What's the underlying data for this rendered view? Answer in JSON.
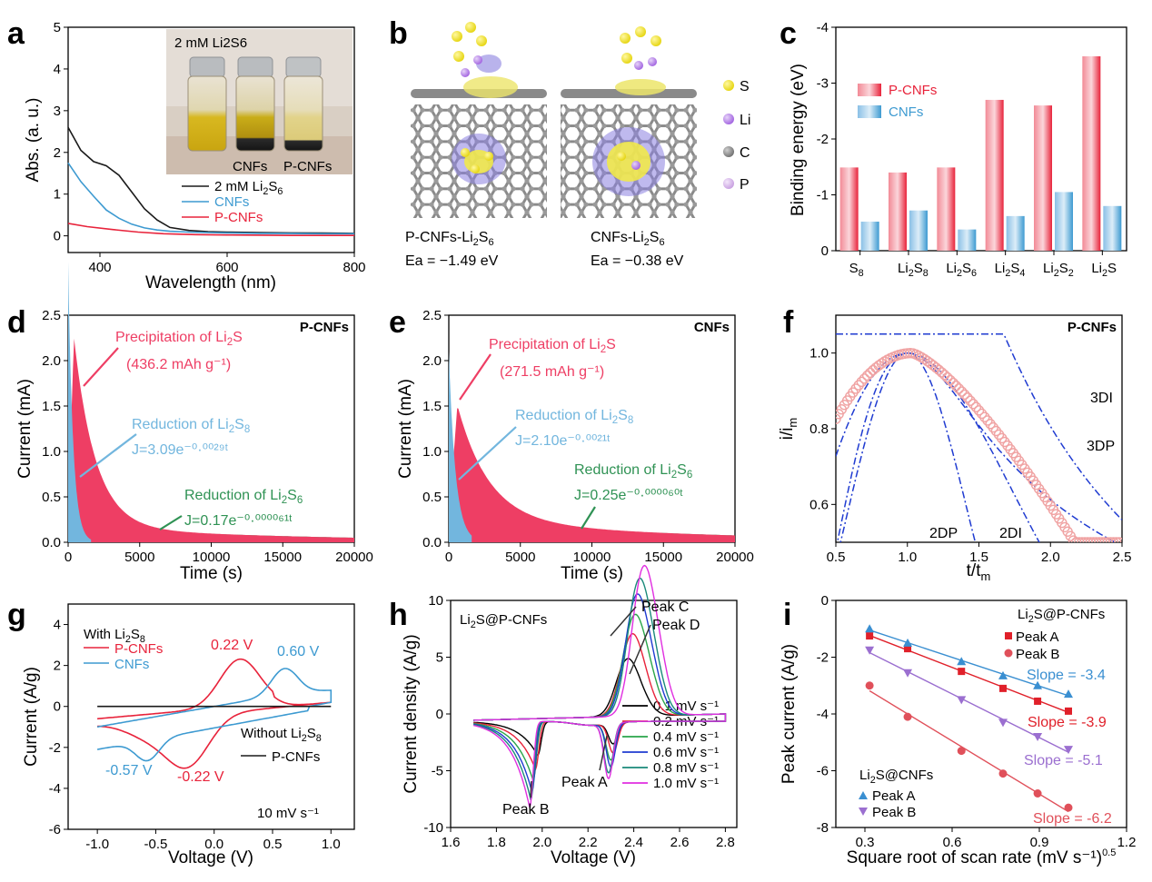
{
  "colors": {
    "red": "#e8233b",
    "blue": "#3d9ad1",
    "black": "#1a1a1a",
    "green": "#2f9254",
    "pink": "#ee3e64",
    "lightblue": "#72b6de",
    "darkblue": "#1f3bd1",
    "purple": "#9b6fd0"
  },
  "panels": [
    "a",
    "b",
    "c",
    "d",
    "e",
    "f",
    "g",
    "h",
    "i"
  ],
  "chart_data": [
    {
      "id": "a",
      "type": "line",
      "xlabel": "Wavelength (nm)",
      "ylabel": "Abs. (a. u.)",
      "xlim": [
        350,
        800
      ],
      "ylim": [
        -0.4,
        5
      ],
      "xticks": [
        400,
        600,
        800
      ],
      "yticks": [
        0,
        1,
        2,
        3,
        4,
        5
      ],
      "inset": {
        "title": "2 mM Li2S6",
        "labels": [
          "CNFs",
          "P-CNFs"
        ]
      },
      "series": [
        {
          "name": "2 mM Li2S6",
          "color": "black",
          "x": [
            350,
            370,
            390,
            410,
            430,
            450,
            470,
            490,
            510,
            540,
            570,
            600,
            650,
            700,
            750,
            800
          ],
          "values": [
            2.6,
            2.05,
            1.78,
            1.68,
            1.45,
            1.05,
            0.65,
            0.38,
            0.2,
            0.13,
            0.1,
            0.09,
            0.08,
            0.07,
            0.065,
            0.06
          ]
        },
        {
          "name": "CNFs",
          "color": "blue",
          "x": [
            350,
            370,
            390,
            410,
            430,
            450,
            470,
            490,
            510,
            540,
            570,
            600,
            650,
            700,
            750,
            800
          ],
          "values": [
            1.75,
            1.3,
            0.95,
            0.62,
            0.42,
            0.28,
            0.19,
            0.14,
            0.11,
            0.09,
            0.08,
            0.07,
            0.06,
            0.055,
            0.05,
            0.05
          ]
        },
        {
          "name": "P-CNFs",
          "color": "red",
          "x": [
            350,
            380,
            420,
            460,
            500,
            550,
            600,
            700,
            800
          ],
          "values": [
            0.3,
            0.22,
            0.15,
            0.09,
            0.05,
            0.03,
            0.02,
            0.01,
            0.01
          ]
        }
      ]
    },
    {
      "id": "b",
      "type": "diagram",
      "legend": [
        "S",
        "Li",
        "C",
        "P"
      ],
      "structures": [
        {
          "name": "P-CNFs-Li2S6",
          "ea": "Ea = −1.49 eV"
        },
        {
          "name": "CNFs-Li2S6",
          "ea": "Ea = −0.38 eV"
        }
      ]
    },
    {
      "id": "c",
      "type": "bar",
      "ylabel": "Binding energy (eV)",
      "ylim": [
        0,
        -4
      ],
      "yticks": [
        0,
        -1,
        -2,
        -3,
        -4
      ],
      "categories": [
        "S8",
        "Li2S8",
        "Li2S6",
        "Li2S4",
        "Li2S2",
        "Li2S"
      ],
      "series": [
        {
          "name": "P-CNFs",
          "color": "red",
          "values": [
            -1.49,
            -1.4,
            -1.49,
            -2.7,
            -2.6,
            -3.48
          ]
        },
        {
          "name": "CNFs",
          "color": "blue",
          "values": [
            -0.52,
            -0.72,
            -0.38,
            -0.62,
            -1.05,
            -0.8
          ]
        }
      ]
    },
    {
      "id": "d",
      "type": "area",
      "sample": "P-CNFs",
      "xlabel": "Time (s)",
      "ylabel": "Current (mA)",
      "xlim": [
        0,
        20000
      ],
      "ylim": [
        0,
        2.5
      ],
      "xticks": [
        0,
        5000,
        10000,
        15000,
        20000
      ],
      "yticks": [
        0.0,
        0.5,
        1.0,
        1.5,
        2.0,
        2.5
      ],
      "peak_time": 400,
      "peak_current": 2.3,
      "annotations": {
        "precip": "Precipitation of Li2S",
        "precip_cap": "(436.2 mAh g⁻¹)",
        "red1": "Reduction of Li2S8",
        "eq1": "J=3.09e⁻⁰·⁰⁰²⁹ᵗ",
        "red2": "Reduction of Li2S6",
        "eq2": "J=0.17e⁻⁰·⁰⁰⁰⁰⁶¹ᵗ"
      }
    },
    {
      "id": "e",
      "type": "area",
      "sample": "CNFs",
      "xlabel": "Time (s)",
      "ylabel": "Current (mA)",
      "xlim": [
        0,
        20000
      ],
      "ylim": [
        0,
        2.5
      ],
      "xticks": [
        0,
        5000,
        10000,
        15000,
        20000
      ],
      "yticks": [
        0.0,
        0.5,
        1.0,
        1.5,
        2.0,
        2.5
      ],
      "peak_time": 600,
      "peak_current": 1.52,
      "annotations": {
        "precip": "Precipitation of Li2S",
        "precip_cap": "(271.5 mAh g⁻¹)",
        "red1": "Reduction of Li2S8",
        "eq1": "J=2.10e⁻⁰·⁰⁰²¹ᵗ",
        "red2": "Reduction of Li2S6",
        "eq2": "J=0.25e⁻⁰·⁰⁰⁰⁰⁶⁰ᵗ"
      }
    },
    {
      "id": "f",
      "type": "scatter",
      "sample": "P-CNFs",
      "xlabel": "t/tm",
      "ylabel": "i/im",
      "xlim": [
        0.5,
        2.5
      ],
      "ylim": [
        0.5,
        1.1
      ],
      "xticks": [
        0.5,
        1.0,
        1.5,
        2.0,
        2.5
      ],
      "yticks": [
        0.6,
        0.8,
        1.0
      ],
      "models": [
        "3DI",
        "3DP",
        "2DP",
        "2DI"
      ]
    },
    {
      "id": "g",
      "type": "line",
      "xlabel": "Voltage (V)",
      "ylabel": "Current (A/g)",
      "xlim": [
        -1.25,
        1.2
      ],
      "ylim": [
        -6,
        5
      ],
      "xticks": [
        -1.0,
        -0.5,
        0.0,
        0.5,
        1.0
      ],
      "yticks": [
        -6,
        -4,
        -2,
        0,
        2,
        4
      ],
      "legend_title": "With Li2S8",
      "legend2_title": "Without Li2S8",
      "scan_rate": "10 mV s⁻¹",
      "series": [
        {
          "name": "P-CNFs",
          "color": "red"
        },
        {
          "name": "CNFs",
          "color": "blue"
        },
        {
          "name": "P-CNFs",
          "color": "black"
        }
      ],
      "peaks": [
        "0.22 V",
        "0.60 V",
        "-0.57 V",
        "-0.22 V"
      ]
    },
    {
      "id": "h",
      "type": "line",
      "sample": "Li2S@P-CNFs",
      "xlabel": "Voltage (V)",
      "ylabel": "Current density (A/g)",
      "xlim": [
        1.6,
        2.85
      ],
      "ylim": [
        -10,
        10
      ],
      "xticks": [
        1.6,
        1.8,
        2.0,
        2.2,
        2.4,
        2.6,
        2.8
      ],
      "yticks": [
        -10,
        -5,
        0,
        5,
        10
      ],
      "peaks": [
        "Peak A",
        "Peak B",
        "Peak C",
        "Peak D"
      ],
      "series": [
        {
          "name": "0.1 mV s⁻¹",
          "color": "#000000"
        },
        {
          "name": "0.2 mV s⁻¹",
          "color": "#e8233b"
        },
        {
          "name": "0.4 mV s⁻¹",
          "color": "#2aa54a"
        },
        {
          "name": "0.6 mV s⁻¹",
          "color": "#1f3bd1"
        },
        {
          "name": "0.8 mV s⁻¹",
          "color": "#1a8a7a"
        },
        {
          "name": "1.0 mV s⁻¹",
          "color": "#e02ee0"
        }
      ]
    },
    {
      "id": "i",
      "type": "scatter",
      "xlabel": "Square root of scan rate (mV s⁻¹)",
      "xlabel_sup": "0.5",
      "ylabel": "Peak current (A/g)",
      "xlim": [
        0.2,
        1.2
      ],
      "ylim": [
        -8,
        0
      ],
      "xticks": [
        0.3,
        0.6,
        0.9,
        1.2
      ],
      "yticks": [
        -8,
        -6,
        -4,
        -2,
        0
      ],
      "x": [
        0.316,
        0.447,
        0.632,
        0.775,
        0.894,
        1.0
      ],
      "groups": [
        {
          "title": "Li2S@P-CNFs",
          "series": [
            {
              "name": "Peak A",
              "color": "#e0202a",
              "marker": "square",
              "values": [
                -1.25,
                -1.7,
                -2.5,
                -3.1,
                -3.55,
                -3.9
              ],
              "slope": "Slope = -3.9"
            },
            {
              "name": "Peak B",
              "color": "#e0505a",
              "marker": "circle",
              "values": [
                -3.0,
                -4.1,
                -5.3,
                -6.1,
                -6.8,
                -7.3
              ],
              "slope": "Slope = -6.2"
            }
          ]
        },
        {
          "title": "Li2S@CNFs",
          "series": [
            {
              "name": "Peak A",
              "color": "#3a8fd1",
              "marker": "triangle",
              "values": [
                -1.0,
                -1.5,
                -2.15,
                -2.65,
                -3.0,
                -3.3
              ],
              "slope": "Slope = -3.4"
            },
            {
              "name": "Peak B",
              "color": "#9b6fd0",
              "marker": "tri-down",
              "values": [
                -1.75,
                -2.55,
                -3.5,
                -4.3,
                -4.8,
                -5.25
              ],
              "slope": "Slope = -5.1"
            }
          ]
        }
      ]
    }
  ]
}
